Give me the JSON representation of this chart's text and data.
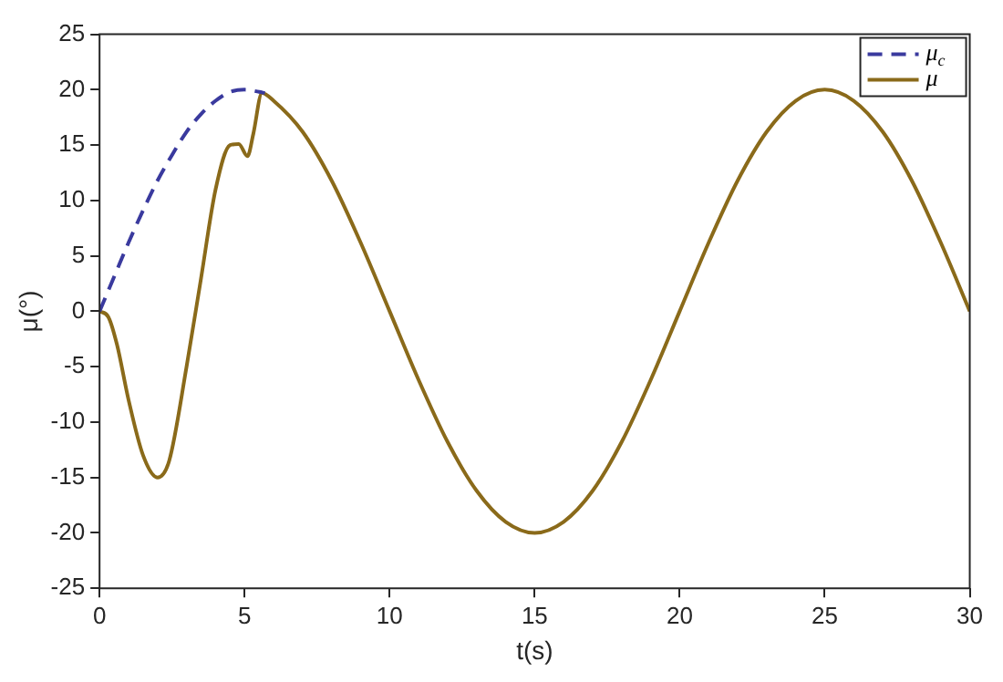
{
  "chart_data": {
    "type": "line",
    "xlabel": "t(s)",
    "ylabel": "μ(°)",
    "xlim": [
      0,
      30
    ],
    "xticks": [
      0,
      5,
      10,
      15,
      20,
      25,
      30
    ],
    "ylim": [
      -25,
      25
    ],
    "yticks": [
      -25,
      -20,
      -15,
      -10,
      -5,
      0,
      5,
      10,
      15,
      20,
      25
    ],
    "grid": false,
    "legend": "top right",
    "marker": "none",
    "series": [
      {
        "name": "μ$_{c}$",
        "color": "#3a3a9e",
        "line_style": "dashed",
        "x": [
          0,
          0.5,
          1,
          1.5,
          2,
          2.5,
          3,
          3.5,
          4,
          4.5,
          5,
          5.5,
          5.7
        ],
        "values": [
          0,
          3.1,
          6.2,
          9.1,
          11.8,
          14.1,
          16.2,
          17.8,
          19,
          19.8,
          20,
          19.8,
          19.7
        ]
      },
      {
        "name": "μ",
        "color": "#8a6a1a",
        "line_style": "solid",
        "x": [
          0,
          0.3,
          0.6,
          1,
          1.5,
          2,
          2.4,
          3,
          3.5,
          4,
          4.5,
          4.8,
          5.1,
          5.3,
          5.6,
          6,
          7,
          8,
          9,
          10,
          11,
          12,
          13,
          14,
          15,
          16,
          17,
          18,
          19,
          20,
          21,
          22,
          23,
          24,
          25,
          26,
          27,
          28,
          29,
          30
        ],
        "values": [
          0,
          -0.5,
          -3,
          -8,
          -13,
          -15,
          -13.5,
          -5,
          3,
          11,
          15,
          15.1,
          14,
          16,
          19.7,
          19,
          16.2,
          11.8,
          6.2,
          0,
          -6.2,
          -11.8,
          -16.2,
          -19,
          -20,
          -19,
          -16.2,
          -11.8,
          -6.2,
          0,
          6.2,
          11.8,
          16.2,
          19,
          20,
          19,
          16.2,
          11.8,
          6.2,
          0
        ]
      }
    ]
  }
}
